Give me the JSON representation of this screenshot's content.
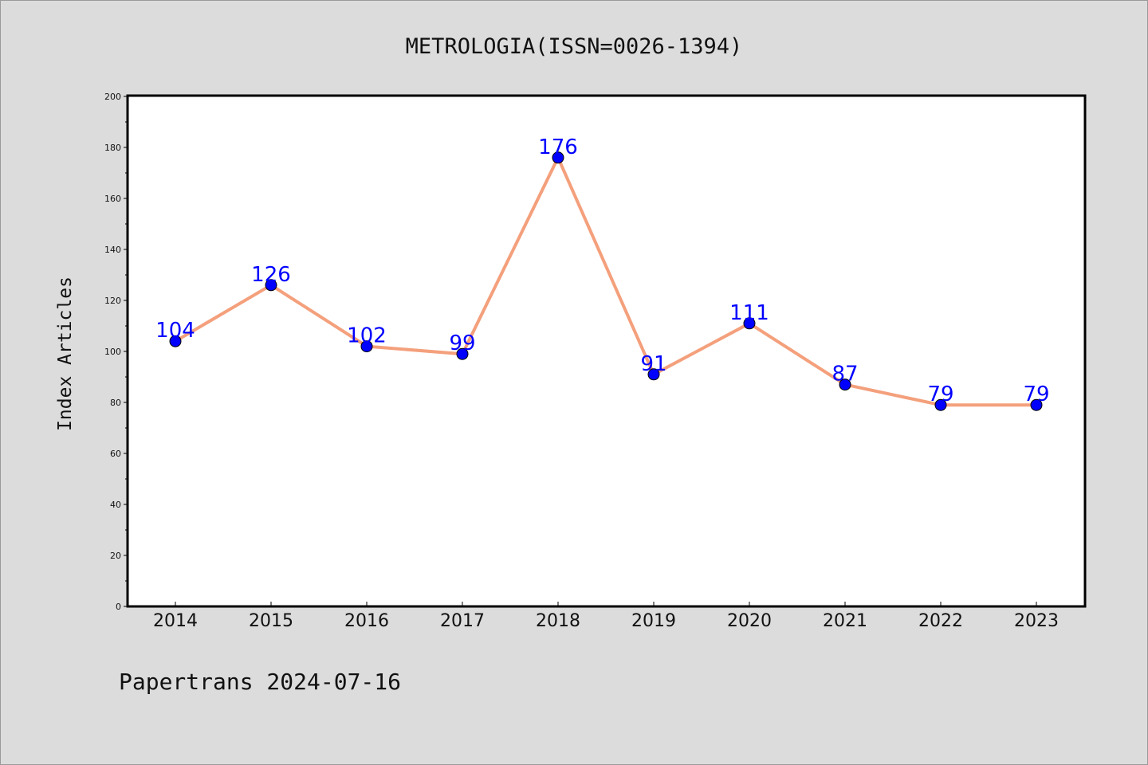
{
  "chart_data": {
    "type": "line",
    "title": "METROLOGIA(ISSN=0026-1394)",
    "xlabel": "",
    "ylabel": "Index Articles",
    "categories": [
      "2014",
      "2015",
      "2016",
      "2017",
      "2018",
      "2019",
      "2020",
      "2021",
      "2022",
      "2023"
    ],
    "series": [
      {
        "values": [
          104,
          126,
          102,
          99,
          176,
          91,
          111,
          87,
          79,
          79
        ]
      }
    ],
    "ylim": [
      0,
      200
    ],
    "yticks": [
      0,
      20,
      40,
      60,
      80,
      100,
      120,
      140,
      160,
      180,
      200
    ],
    "data_labels": true,
    "grid": false,
    "colors": {
      "line": "#f4a07c",
      "marker": "#0000ff",
      "label": "#0000ff",
      "background": "#dcdcdc",
      "plot": "#ffffff"
    }
  },
  "footer": {
    "watermark": "Papertrans 2024-07-16"
  }
}
